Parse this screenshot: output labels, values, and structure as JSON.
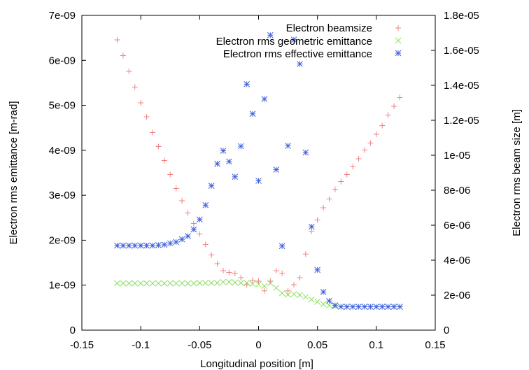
{
  "chart_data": {
    "type": "scatter",
    "title": "",
    "xlabel": "Longitudinal position [m]",
    "ylabel": "Electron rms emittance [m-rad]",
    "y2label": "Electron rms beam size [m]",
    "xlim": [
      -0.15,
      0.15
    ],
    "ylim": [
      0,
      7e-09
    ],
    "y2lim": [
      0,
      1.8e-05
    ],
    "xticks": [
      "-0.15",
      "-0.1",
      "-0.05",
      "0",
      "0.05",
      "0.1",
      "0.15"
    ],
    "yticks": [
      "0",
      "1e-09",
      "2e-09",
      "3e-09",
      "4e-09",
      "5e-09",
      "6e-09",
      "7e-09"
    ],
    "y2ticks": [
      "0",
      "2e-06",
      "4e-06",
      "6e-06",
      "8e-06",
      "1e-05",
      "1.2e-05",
      "1.4e-05",
      "1.6e-05",
      "1.8e-05"
    ],
    "grid": false,
    "legend_position": "top-right",
    "series": [
      {
        "name": "Electron beamsize",
        "axis": "right",
        "marker": "plus",
        "color": "#f08080",
        "points": [
          [
            -0.12,
            1.66e-05
          ],
          [
            -0.115,
            1.57e-05
          ],
          [
            -0.11,
            1.48e-05
          ],
          [
            -0.105,
            1.39e-05
          ],
          [
            -0.1,
            1.3e-05
          ],
          [
            -0.095,
            1.22e-05
          ],
          [
            -0.09,
            1.13e-05
          ],
          [
            -0.085,
            1.05e-05
          ],
          [
            -0.08,
            9.7e-06
          ],
          [
            -0.075,
            8.9e-06
          ],
          [
            -0.07,
            8.1e-06
          ],
          [
            -0.065,
            7.4e-06
          ],
          [
            -0.06,
            6.7e-06
          ],
          [
            -0.055,
            6.1e-06
          ],
          [
            -0.05,
            5.5e-06
          ],
          [
            -0.045,
            4.9e-06
          ],
          [
            -0.04,
            4.3e-06
          ],
          [
            -0.035,
            3.8e-06
          ],
          [
            -0.03,
            3.4e-06
          ],
          [
            -0.025,
            3.3e-06
          ],
          [
            -0.02,
            3.25e-06
          ],
          [
            -0.015,
            3e-06
          ],
          [
            -0.01,
            2.6e-06
          ],
          [
            -0.005,
            2.85e-06
          ],
          [
            0.0,
            2.8e-06
          ],
          [
            0.005,
            2.25e-06
          ],
          [
            0.01,
            2.8e-06
          ],
          [
            0.015,
            3.4e-06
          ],
          [
            0.02,
            3.25e-06
          ],
          [
            0.025,
            2.25e-06
          ],
          [
            0.03,
            2.6e-06
          ],
          [
            0.035,
            3e-06
          ],
          [
            0.04,
            4.35e-06
          ],
          [
            0.045,
            5.65e-06
          ],
          [
            0.05,
            6.3e-06
          ],
          [
            0.055,
            7e-06
          ],
          [
            0.06,
            7.5e-06
          ],
          [
            0.065,
            8.05e-06
          ],
          [
            0.07,
            8.5e-06
          ],
          [
            0.075,
            8.9e-06
          ],
          [
            0.08,
            9.35e-06
          ],
          [
            0.085,
            9.8e-06
          ],
          [
            0.09,
            1.03e-05
          ],
          [
            0.095,
            1.07e-05
          ],
          [
            0.1,
            1.12e-05
          ],
          [
            0.105,
            1.17e-05
          ],
          [
            0.11,
            1.23e-05
          ],
          [
            0.115,
            1.28e-05
          ],
          [
            0.12,
            1.33e-05
          ]
        ]
      },
      {
        "name": "Electron rms geometric emittance",
        "axis": "left",
        "marker": "cross",
        "color": "#88e060",
        "points": [
          [
            -0.12,
            1.04e-09
          ],
          [
            -0.115,
            1.04e-09
          ],
          [
            -0.11,
            1.04e-09
          ],
          [
            -0.105,
            1.04e-09
          ],
          [
            -0.1,
            1.04e-09
          ],
          [
            -0.095,
            1.04e-09
          ],
          [
            -0.09,
            1.04e-09
          ],
          [
            -0.085,
            1.04e-09
          ],
          [
            -0.08,
            1.04e-09
          ],
          [
            -0.075,
            1.04e-09
          ],
          [
            -0.07,
            1.04e-09
          ],
          [
            -0.065,
            1.04e-09
          ],
          [
            -0.06,
            1.04e-09
          ],
          [
            -0.055,
            1.04e-09
          ],
          [
            -0.05,
            1.05e-09
          ],
          [
            -0.045,
            1.05e-09
          ],
          [
            -0.04,
            1.05e-09
          ],
          [
            -0.035,
            1.05e-09
          ],
          [
            -0.03,
            1.07e-09
          ],
          [
            -0.025,
            1.07e-09
          ],
          [
            -0.02,
            1.06e-09
          ],
          [
            -0.015,
            1.05e-09
          ],
          [
            -0.01,
            1.05e-09
          ],
          [
            -0.005,
            1.03e-09
          ],
          [
            0.0,
            1.02e-09
          ],
          [
            0.005,
            9.8e-10
          ],
          [
            0.01,
            1.04e-09
          ],
          [
            0.015,
            9.4e-10
          ],
          [
            0.02,
            8.2e-10
          ],
          [
            0.025,
            7.9e-10
          ],
          [
            0.03,
            8e-10
          ],
          [
            0.035,
            7.8e-10
          ],
          [
            0.04,
            7.4e-10
          ],
          [
            0.045,
            6.8e-10
          ],
          [
            0.05,
            6.3e-10
          ],
          [
            0.055,
            5.8e-10
          ],
          [
            0.06,
            5.5e-10
          ],
          [
            0.065,
            5.3e-10
          ],
          [
            0.07,
            5.2e-10
          ],
          [
            0.075,
            5.2e-10
          ],
          [
            0.08,
            5.2e-10
          ],
          [
            0.085,
            5.2e-10
          ],
          [
            0.09,
            5.2e-10
          ],
          [
            0.095,
            5.2e-10
          ],
          [
            0.1,
            5.2e-10
          ],
          [
            0.105,
            5.2e-10
          ],
          [
            0.11,
            5.2e-10
          ],
          [
            0.115,
            5.2e-10
          ],
          [
            0.12,
            5.2e-10
          ]
        ]
      },
      {
        "name": "Electron rms effective emittance",
        "axis": "left",
        "marker": "star",
        "color": "#4060e0",
        "points": [
          [
            -0.12,
            1.88e-09
          ],
          [
            -0.115,
            1.88e-09
          ],
          [
            -0.11,
            1.88e-09
          ],
          [
            -0.105,
            1.88e-09
          ],
          [
            -0.1,
            1.88e-09
          ],
          [
            -0.095,
            1.88e-09
          ],
          [
            -0.09,
            1.88e-09
          ],
          [
            -0.085,
            1.89e-09
          ],
          [
            -0.08,
            1.9e-09
          ],
          [
            -0.075,
            1.93e-09
          ],
          [
            -0.07,
            1.96e-09
          ],
          [
            -0.065,
            2.02e-09
          ],
          [
            -0.06,
            2.09e-09
          ],
          [
            -0.055,
            2.24e-09
          ],
          [
            -0.05,
            2.46e-09
          ],
          [
            -0.045,
            2.78e-09
          ],
          [
            -0.04,
            3.21e-09
          ],
          [
            -0.035,
            3.7e-09
          ],
          [
            -0.03,
            3.99e-09
          ],
          [
            -0.025,
            3.75e-09
          ],
          [
            -0.02,
            3.41e-09
          ],
          [
            -0.015,
            4.09e-09
          ],
          [
            -0.01,
            5.47e-09
          ],
          [
            -0.005,
            4.81e-09
          ],
          [
            0.0,
            3.32e-09
          ],
          [
            0.005,
            5.14e-09
          ],
          [
            0.01,
            6.56e-09
          ],
          [
            0.015,
            3.57e-09
          ],
          [
            0.02,
            1.87e-09
          ],
          [
            0.025,
            4.1e-09
          ],
          [
            0.03,
            6.46e-09
          ],
          [
            0.035,
            5.92e-09
          ],
          [
            0.04,
            3.95e-09
          ],
          [
            0.045,
            2.3e-09
          ],
          [
            0.05,
            1.34e-09
          ],
          [
            0.055,
            8.5e-10
          ],
          [
            0.06,
            6.5e-10
          ],
          [
            0.065,
            5.5e-10
          ],
          [
            0.07,
            5.2e-10
          ],
          [
            0.075,
            5.2e-10
          ],
          [
            0.08,
            5.2e-10
          ],
          [
            0.085,
            5.2e-10
          ],
          [
            0.09,
            5.2e-10
          ],
          [
            0.095,
            5.2e-10
          ],
          [
            0.1,
            5.2e-10
          ],
          [
            0.105,
            5.2e-10
          ],
          [
            0.11,
            5.2e-10
          ],
          [
            0.115,
            5.2e-10
          ],
          [
            0.12,
            5.2e-10
          ]
        ]
      }
    ]
  }
}
